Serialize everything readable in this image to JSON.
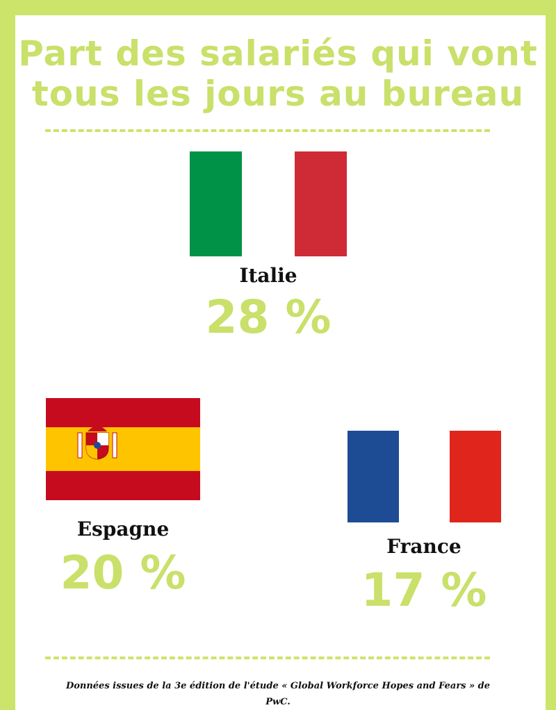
{
  "title": {
    "line1": "Part des salariés qui vont",
    "line2": "tous les jours au bureau"
  },
  "countries": [
    {
      "name": "Italie",
      "value": "28 %",
      "flag": "italy-flag",
      "colors": [
        "#009246",
        "#ffffff",
        "#ce2b37"
      ]
    },
    {
      "name": "Espagne",
      "value": "20 %",
      "flag": "spain-flag",
      "colors": [
        "#c60b1e",
        "#ffc400",
        "#c60b1e"
      ]
    },
    {
      "name": "France",
      "value": "17 %",
      "flag": "france-flag",
      "colors": [
        "#1e4c94",
        "#ffffff",
        "#df251c"
      ]
    }
  ],
  "footer": "Données issues de la 3e édition de l'étude « Global Workforce Hopes and Fears » de PwC.",
  "accent_color": "#cde46b"
}
